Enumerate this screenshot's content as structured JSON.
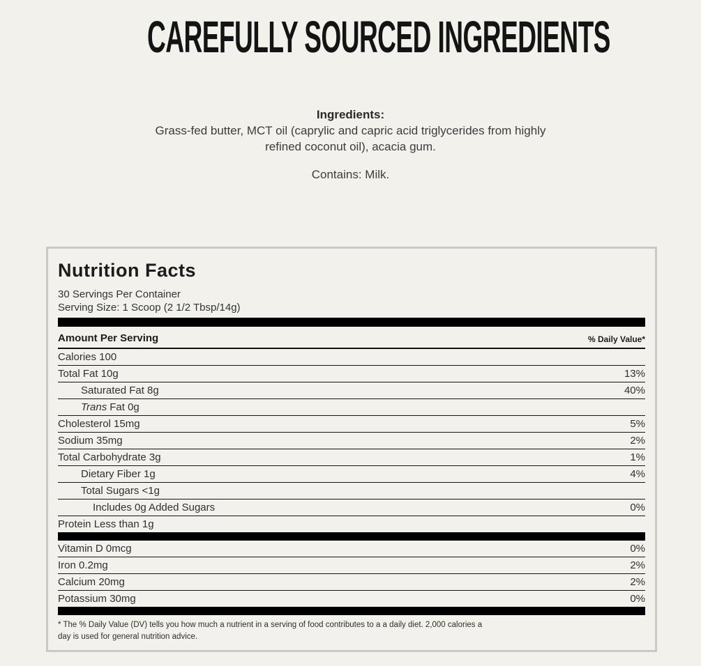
{
  "page": {
    "title": "CAREFULLY SOURCED INGREDIENTS",
    "background_color": "#f2f1ec"
  },
  "ingredients": {
    "heading": "Ingredients:",
    "body": "Grass-fed butter, MCT oil (caprylic and capric acid triglycerides from highly refined coconut oil), acacia gum.",
    "contains": "Contains: Milk."
  },
  "nutrition": {
    "title": "Nutrition Facts",
    "servings_per_container": "30 Servings Per Container",
    "serving_size": "Serving Size: 1 Scoop (2 1/2 Tbsp/14g)",
    "amount_header": "Amount Per Serving",
    "daily_value_header": "% Daily Value*",
    "rows": [
      {
        "label": "Calories 100",
        "value": ""
      },
      {
        "label": "Total Fat 10g",
        "value": "13%"
      },
      {
        "label": "Saturated Fat 8g",
        "value": "40%"
      },
      {
        "label_italic": "Trans",
        "label": "Fat 0g",
        "value": ""
      },
      {
        "label": "Cholesterol 15mg",
        "value": "5%"
      },
      {
        "label": "Sodium 35mg",
        "value": "2%"
      },
      {
        "label": "Total Carbohydrate 3g",
        "value": "1%"
      },
      {
        "label": "Dietary Fiber 1g",
        "value": "4%"
      },
      {
        "label": "Total Sugars <1g",
        "value": ""
      },
      {
        "label": "Includes 0g Added Sugars",
        "value": "0%"
      },
      {
        "label": "Protein Less than 1g",
        "value": ""
      },
      {
        "label": "Vitamin D 0mcg",
        "value": "0%"
      },
      {
        "label": "Iron 0.2mg",
        "value": "2%"
      },
      {
        "label": "Calcium 20mg",
        "value": "2%"
      },
      {
        "label": "Potassium 30mg",
        "value": "0%"
      }
    ],
    "footnote_line1": "* The % Daily Value (DV) tells you how much a nutrient in a serving of food contributes to a a daily diet. 2,000 calories a",
    "footnote_line2": "day is used for general nutrition advice."
  }
}
